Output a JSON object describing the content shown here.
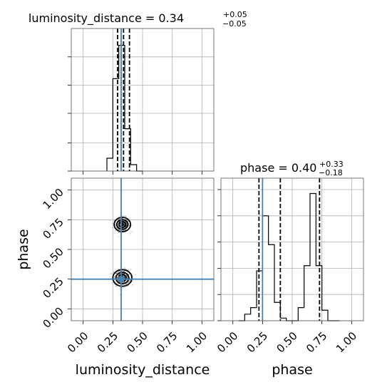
{
  "colors": {
    "truth": "#4682b4",
    "hist": "#000000",
    "grid": "#b0b0b0"
  },
  "chart_data": [
    {
      "type": "histogram",
      "panel": "luminosity_distance-1d",
      "title": {
        "param": "luminosity_distance",
        "value": "0.34",
        "plus": "+0.05",
        "minus": "−0.05"
      },
      "xlim": [
        -0.1,
        1.1
      ],
      "bin_edges": [
        0.2,
        0.25,
        0.3,
        0.35,
        0.4,
        0.45,
        0.5
      ],
      "counts": [
        0.1,
        0.72,
        0.98,
        0.33,
        0.05,
        0.0
      ],
      "ymax": 1.0,
      "quantile_lines": [
        0.29,
        0.34,
        0.39
      ],
      "truth_line": 0.32,
      "yticks": [
        0.0,
        0.22,
        0.45,
        0.67,
        0.89
      ]
    },
    {
      "type": "scatter-density",
      "panel": "phase-vs-luminosity_distance",
      "xlabel": "luminosity_distance",
      "ylabel": "phase",
      "xlim": [
        -0.1,
        1.1
      ],
      "ylim": [
        -0.1,
        1.1
      ],
      "xticks": [
        "0.00",
        "0.25",
        "0.50",
        "0.75",
        "1.00"
      ],
      "yticks": [
        "0.00",
        "0.25",
        "0.50",
        "0.75",
        "1.00"
      ],
      "clusters": [
        {
          "cx": 0.33,
          "cy": 0.71,
          "sx": 0.03,
          "sy": 0.03
        },
        {
          "cx": 0.33,
          "cy": 0.26,
          "sx": 0.035,
          "sy": 0.035
        }
      ],
      "truth": {
        "x": 0.32,
        "y": 0.25
      }
    },
    {
      "type": "histogram",
      "panel": "phase-1d",
      "title": {
        "param": "phase",
        "value": "0.40",
        "plus": "+0.33",
        "minus": "−0.18"
      },
      "xlabel": "phase",
      "xlim": [
        -0.1,
        1.1
      ],
      "xticks": [
        "0.00",
        "0.25",
        "0.50",
        "0.75",
        "1.00"
      ],
      "bin_edges": [
        0.05,
        0.1,
        0.15,
        0.2,
        0.25,
        0.3,
        0.35,
        0.4,
        0.45,
        0.5,
        0.55,
        0.6,
        0.65,
        0.7,
        0.75,
        0.8,
        0.85,
        0.9
      ],
      "counts": [
        0.0,
        0.05,
        0.1,
        0.38,
        0.8,
        0.58,
        0.14,
        0.02,
        0.0,
        0.0,
        0.1,
        0.42,
        0.97,
        0.42,
        0.08,
        0.0,
        0.0
      ],
      "ymax": 1.0,
      "quantile_lines": [
        0.22,
        0.4,
        0.73
      ],
      "truth_line": 0.25,
      "yticks": [
        0.0,
        0.2,
        0.4,
        0.6,
        0.8,
        1.0
      ]
    }
  ]
}
